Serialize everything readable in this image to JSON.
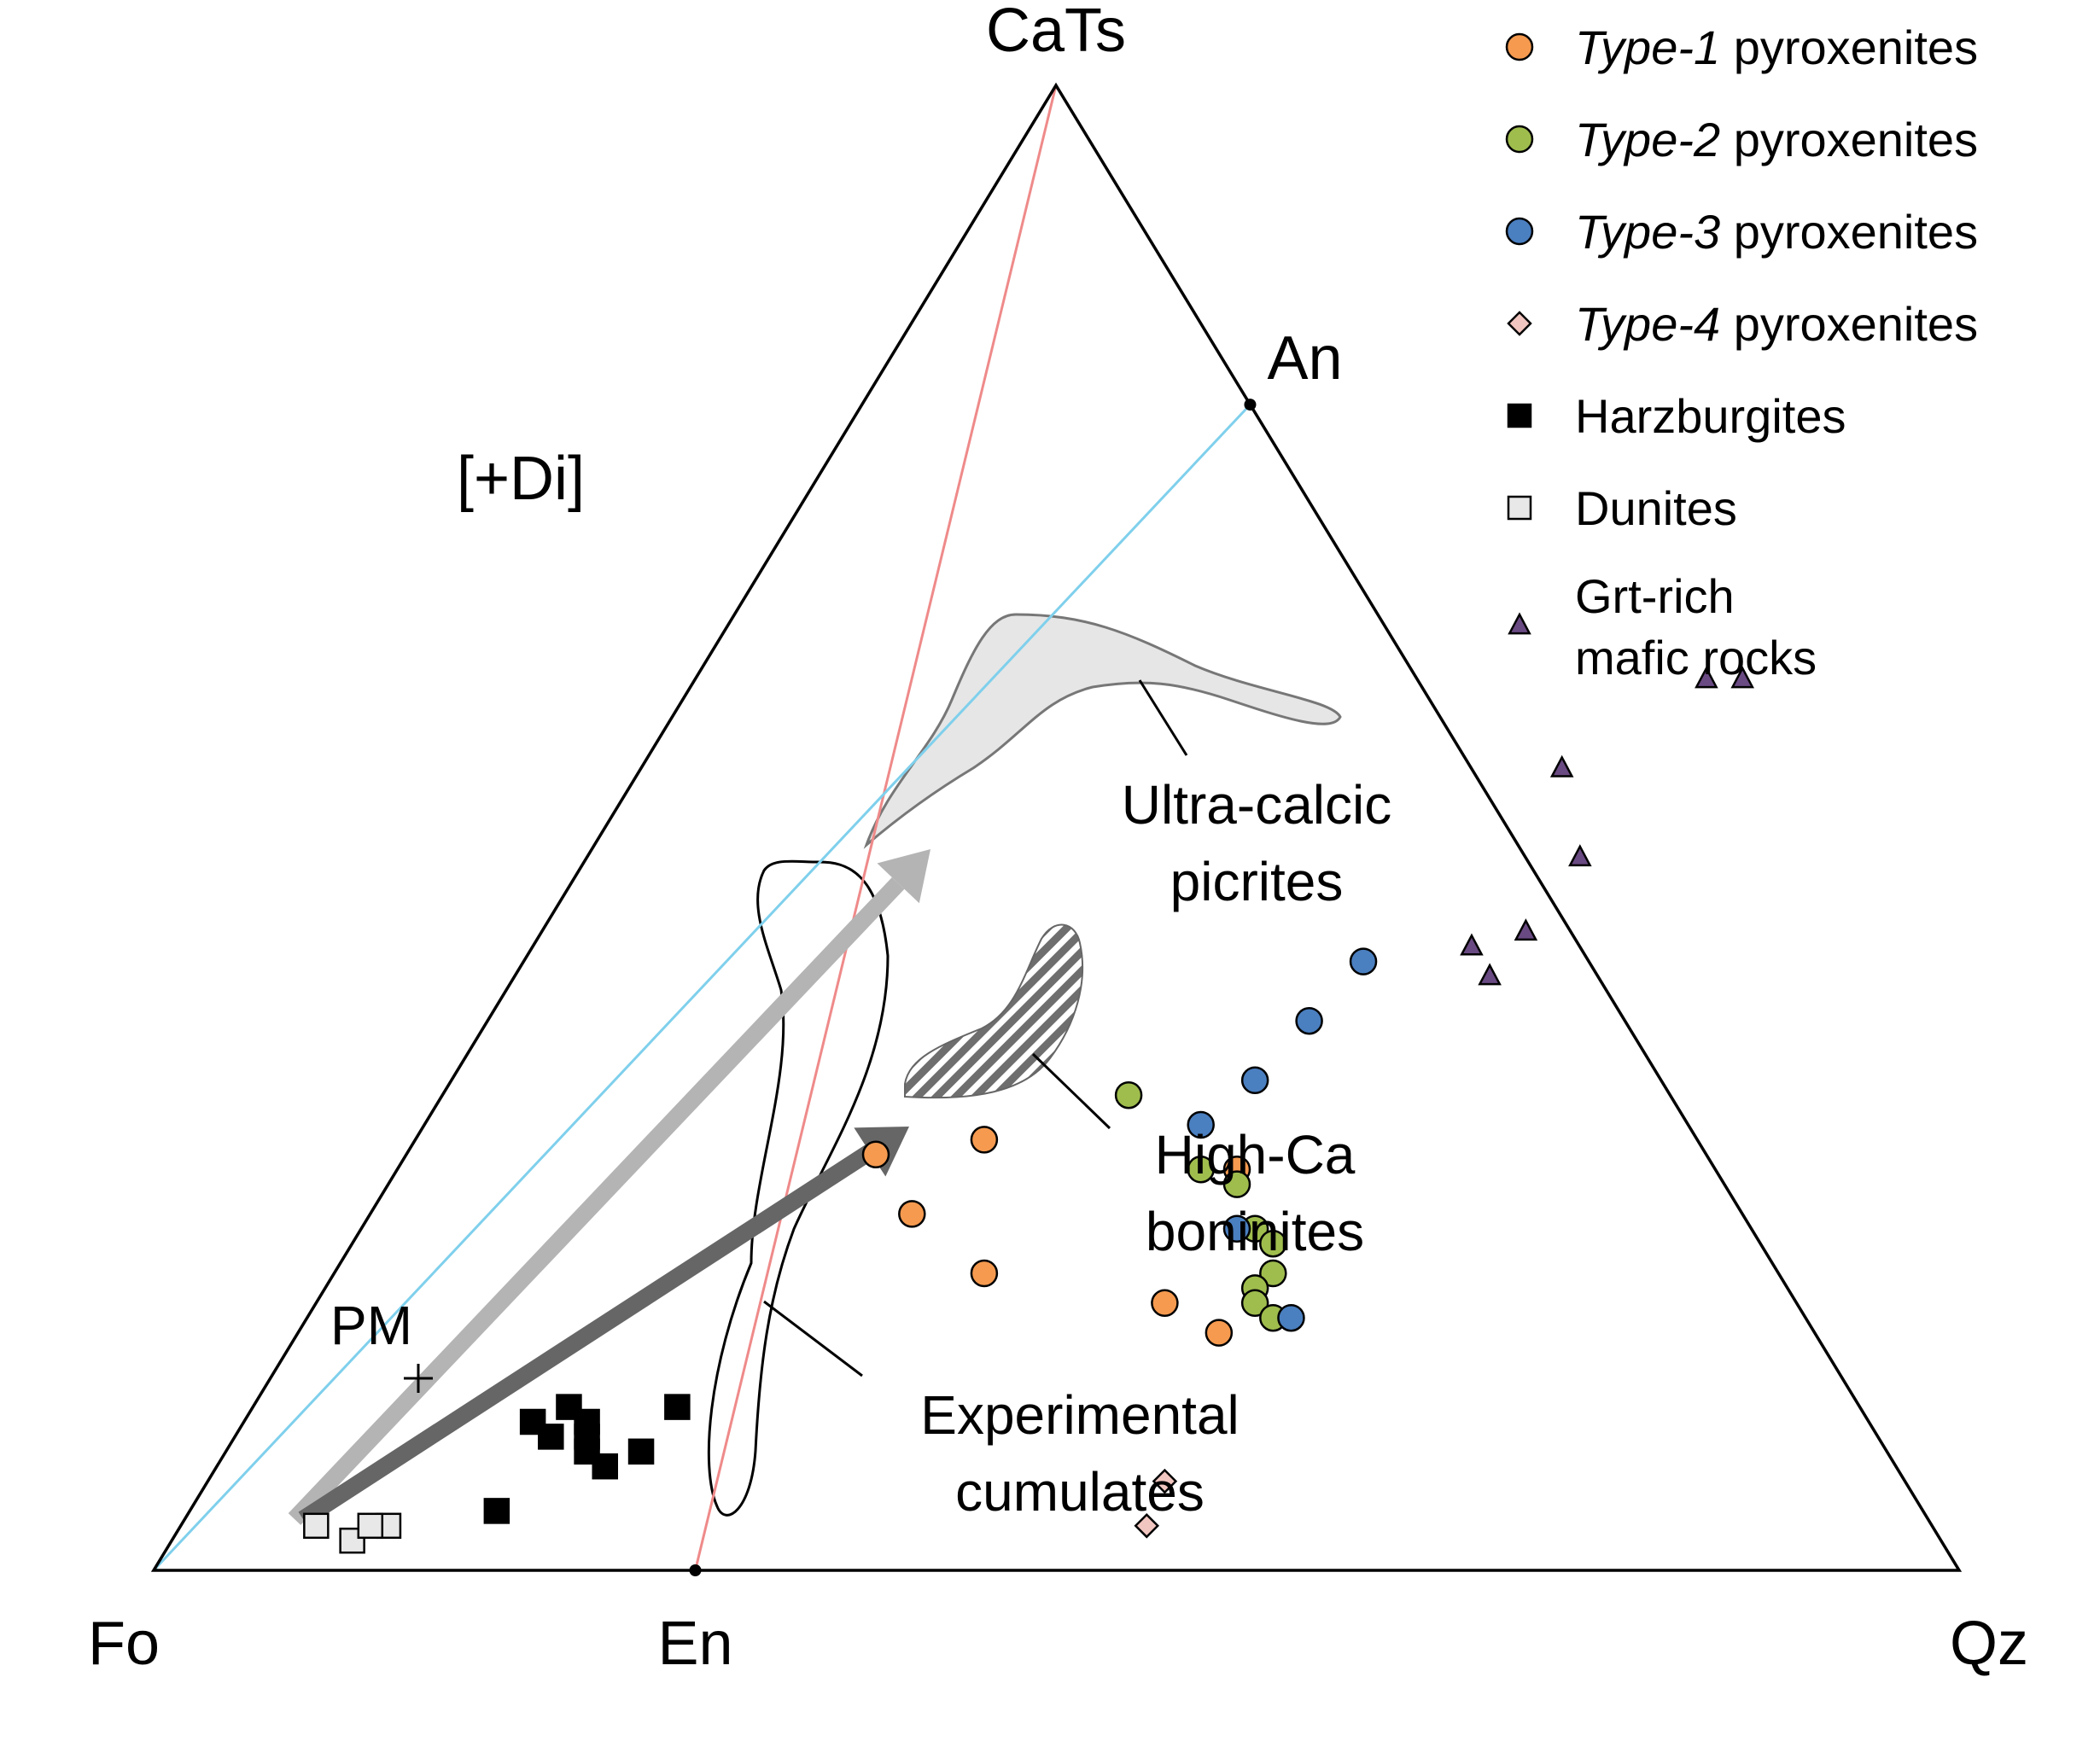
{
  "chart_data": {
    "type": "scatter",
    "subtype": "ternary",
    "title": "",
    "vertices": {
      "left": "Fo",
      "top": "CaTs",
      "right": "Qz"
    },
    "edge_points": [
      {
        "label": "En",
        "edge": "left-right",
        "fraction": 0.3
      },
      {
        "label": "An",
        "edge": "top-right",
        "fraction": 0.215
      }
    ],
    "field_label": "[+Di]",
    "legend": {
      "position": "top-right",
      "items": [
        {
          "key": "type1",
          "italic": "Type-1",
          "text": " pyroxenites",
          "marker": "circle",
          "color": "#f59a4f"
        },
        {
          "key": "type2",
          "italic": "Type-2",
          "text": " pyroxenites",
          "marker": "circle",
          "color": "#9fbd4d"
        },
        {
          "key": "type3",
          "italic": "Type-3",
          "text": " pyroxenites",
          "marker": "circle",
          "color": "#4a7fc0"
        },
        {
          "key": "type4",
          "italic": "Type-4",
          "text": " pyroxenites",
          "marker": "diamond",
          "color": "#f2c6c0"
        },
        {
          "key": "harz",
          "italic": "",
          "text": "Harzburgites",
          "marker": "square",
          "color": "#000000"
        },
        {
          "key": "dun",
          "italic": "",
          "text": "Dunites",
          "marker": "square",
          "color": "#e8e8e8"
        },
        {
          "key": "grt",
          "italic": "",
          "text": "Grt-rich",
          "text2": "mafic rocks",
          "marker": "triangle",
          "color": "#6a4a82"
        }
      ]
    },
    "region_labels": [
      {
        "key": "ucp",
        "lines": [
          "Ultra-calcic",
          "picrites"
        ]
      },
      {
        "key": "hcb",
        "lines": [
          "High-Ca",
          "boninites"
        ]
      },
      {
        "key": "exp",
        "lines": [
          "Experimental",
          "cumulates"
        ]
      },
      {
        "key": "pm",
        "lines": [
          "PM"
        ]
      }
    ],
    "series": [
      {
        "key": "type1",
        "points": [
          [
            0.42,
            0.24
          ],
          [
            0.46,
            0.29
          ],
          [
            0.4,
            0.28
          ],
          [
            0.46,
            0.2
          ],
          [
            0.59,
            0.16
          ],
          [
            0.6,
            0.27
          ],
          [
            0.56,
            0.18
          ]
        ]
      },
      {
        "key": "type2",
        "points": [
          [
            0.54,
            0.32
          ],
          [
            0.58,
            0.27
          ],
          [
            0.6,
            0.26
          ],
          [
            0.61,
            0.23
          ],
          [
            0.62,
            0.22
          ],
          [
            0.62,
            0.2
          ],
          [
            0.61,
            0.19
          ],
          [
            0.61,
            0.18
          ],
          [
            0.62,
            0.17
          ]
        ]
      },
      {
        "key": "type3",
        "points": [
          [
            0.67,
            0.41
          ],
          [
            0.64,
            0.37
          ],
          [
            0.61,
            0.33
          ],
          [
            0.58,
            0.3
          ],
          [
            0.6,
            0.23
          ],
          [
            0.63,
            0.17
          ]
        ]
      },
      {
        "key": "type4",
        "points": [
          [
            0.56,
            0.06
          ],
          [
            0.55,
            0.03
          ]
        ]
      },
      {
        "key": "harz",
        "points": [
          [
            0.21,
            0.1
          ],
          [
            0.24,
            0.1
          ],
          [
            0.24,
            0.08
          ],
          [
            0.22,
            0.09
          ],
          [
            0.24,
            0.09
          ],
          [
            0.27,
            0.08
          ],
          [
            0.29,
            0.11
          ],
          [
            0.25,
            0.07
          ],
          [
            0.19,
            0.04
          ],
          [
            0.23,
            0.11
          ]
        ]
      },
      {
        "key": "dun",
        "points": [
          [
            0.09,
            0.03
          ],
          [
            0.11,
            0.02
          ],
          [
            0.13,
            0.03
          ],
          [
            0.12,
            0.03
          ]
        ]
      },
      {
        "key": "grt",
        "points": [
          [
            0.78,
            0.54
          ],
          [
            0.86,
            0.6
          ],
          [
            0.88,
            0.6
          ],
          [
            0.79,
            0.48
          ],
          [
            0.73,
            0.42
          ],
          [
            0.74,
            0.4
          ],
          [
            0.76,
            0.43
          ]
        ]
      }
    ]
  }
}
